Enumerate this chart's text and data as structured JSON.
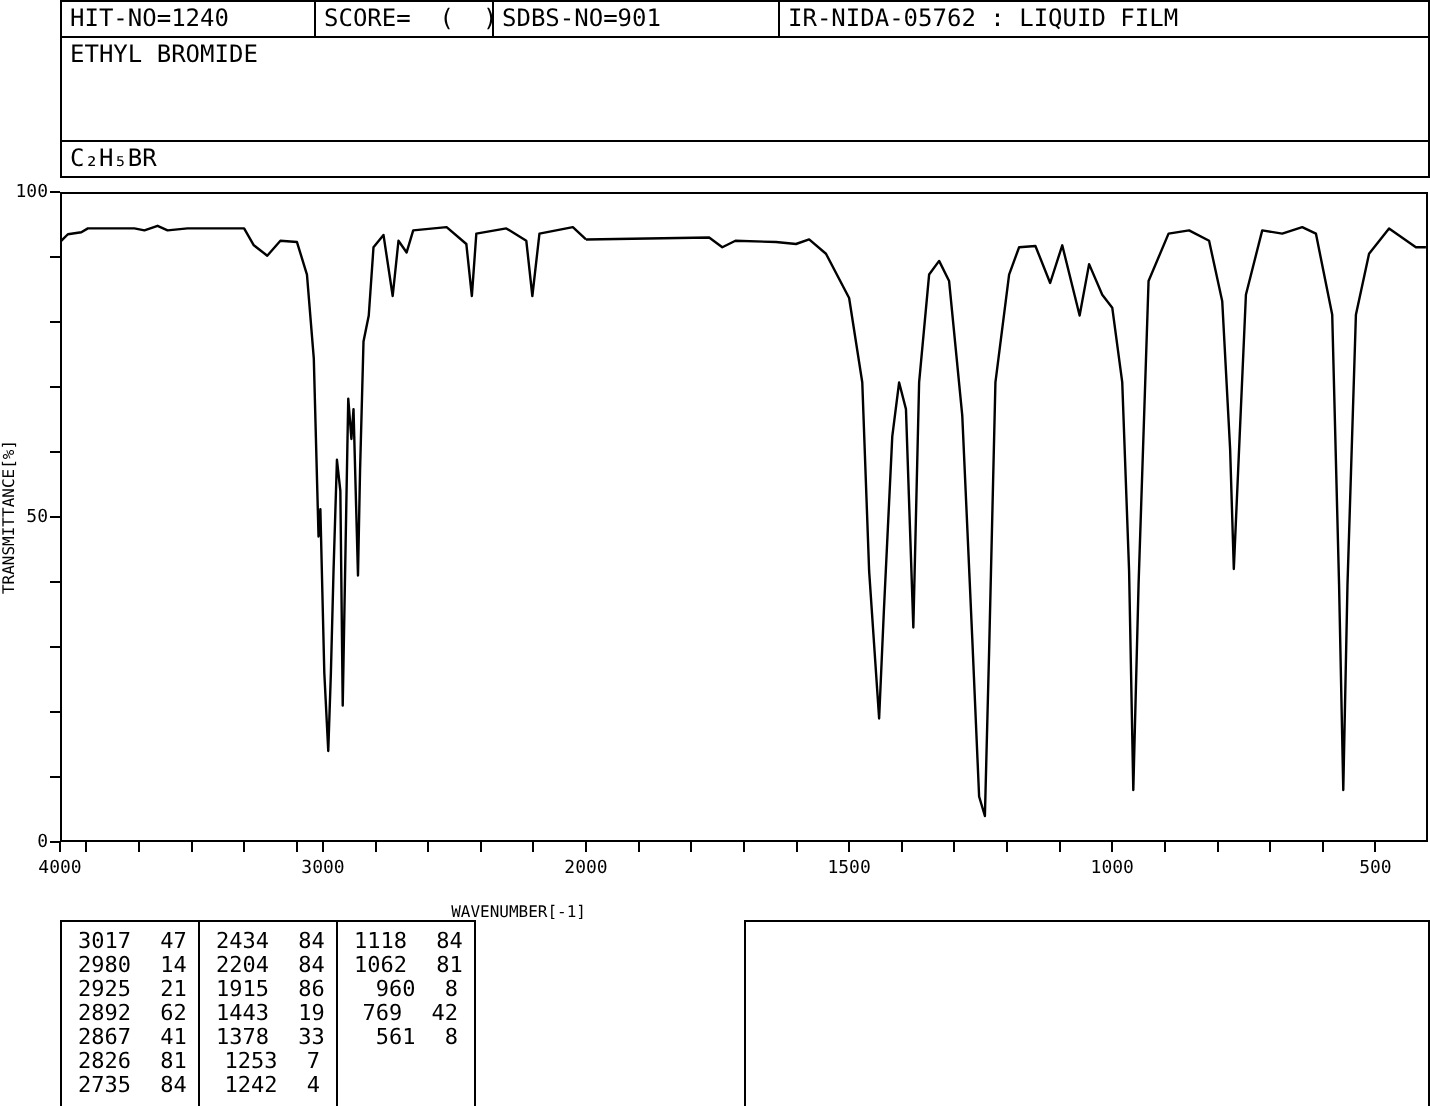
{
  "chart_data": [
    {
      "type": "line",
      "title": "ETHYL BROMIDE",
      "subtitle": "C₂H₅BR",
      "ylabel": "TRANSMITTANCE[%]",
      "x": [
        4000,
        3970,
        3919,
        3894,
        3717,
        3679,
        3629,
        3591,
        3515,
        3300,
        3263,
        3212,
        3162,
        3099,
        3061,
        3035,
        3017,
        3010,
        2995,
        2980,
        2970,
        2960,
        2947,
        2934,
        2925,
        2914,
        2904,
        2892,
        2884,
        2867,
        2859,
        2846,
        2826,
        2808,
        2770,
        2735,
        2713,
        2682,
        2657,
        2530,
        2455,
        2434,
        2417,
        2303,
        2227,
        2204,
        2177,
        2050,
        2000
      ],
      "values": [
        92.3,
        93.5,
        93.8,
        94.4,
        94.4,
        94.1,
        94.8,
        94.1,
        94.4,
        94.4,
        91.8,
        90.2,
        92.5,
        92.3,
        87.3,
        74.4,
        47,
        51.2,
        26,
        14,
        26,
        41.7,
        58.8,
        54,
        21,
        45.9,
        68.2,
        62,
        66.6,
        41,
        57.3,
        77,
        81,
        91.5,
        93.4,
        84,
        92.5,
        90.7,
        94.1,
        94.6,
        92,
        84,
        93.6,
        94.4,
        92.5,
        84,
        93.6,
        94.6,
        92.7
      ],
      "color": "#000000",
      "marker": "none",
      "line_style": "solid",
      "grid": false,
      "legend": false,
      "xlim": [
        4000,
        2000
      ],
      "xticks": [
        4000,
        {
          "value": 3900,
          "label": null
        },
        {
          "value": 3700,
          "label": null
        },
        {
          "value": 3500,
          "label": null
        },
        {
          "value": 3300,
          "label": null
        },
        {
          "value": 3100,
          "label": null
        },
        3000,
        {
          "value": 2800,
          "label": null
        },
        {
          "value": 2600,
          "label": null
        },
        {
          "value": 2400,
          "label": null
        },
        {
          "value": 2200,
          "label": null
        },
        2000
      ],
      "ylim": [
        0,
        100
      ],
      "yticks": [
        0,
        {
          "value": 10,
          "label": null
        },
        {
          "value": 20,
          "label": null
        },
        {
          "value": 30,
          "label": null
        },
        {
          "value": 40,
          "label": null
        },
        50,
        {
          "value": 60,
          "label": null
        },
        {
          "value": 70,
          "label": null
        },
        {
          "value": 80,
          "label": null
        },
        {
          "value": 90,
          "label": null
        },
        100
      ],
      "annotations": [
        "HIT-NO=1240",
        "SCORE=  (  )",
        "SDBS-NO=901",
        "IR-NIDA-05762 : LIQUID FILM",
        "3017 47",
        "2980 14",
        "2925 21",
        "2892 62",
        "2867 41",
        "2826 81",
        "2735 84",
        "2434 84",
        "2204 84",
        "1915 86",
        "1443 19",
        "1378 33",
        "1253 7",
        "1242 4",
        "1118 84",
        "1062 81",
        "960 8",
        "769 42",
        "561 8"
      ]
    },
    {
      "type": "line",
      "xlabel": "WAVENUMBER[-1]",
      "tick_labels": "x",
      "x": [
        2000,
        1766,
        1741,
        1716,
        1639,
        1601,
        1576,
        1544,
        1500,
        1475,
        1462,
        1443,
        1434,
        1418,
        1405,
        1392,
        1378,
        1367,
        1348,
        1329,
        1310,
        1285,
        1266,
        1253,
        1242,
        1234,
        1222,
        1196,
        1177,
        1146,
        1118,
        1095,
        1062,
        1044,
        1019,
        1000,
        981,
        968,
        960,
        950,
        931,
        893,
        854,
        816,
        791,
        776,
        769,
        759,
        746,
        715,
        677,
        639,
        613,
        582,
        569,
        561,
        553,
        537,
        512,
        474,
        423,
        404
      ],
      "values": [
        92.7,
        93,
        91.5,
        92.5,
        92.3,
        92,
        92.7,
        90.5,
        83.7,
        70.7,
        41.7,
        19,
        35.5,
        62.4,
        70.7,
        66.6,
        33,
        70.7,
        87.3,
        89.4,
        86.3,
        65.6,
        31.3,
        7,
        4,
        29.3,
        70.7,
        87.3,
        91.5,
        91.7,
        86,
        91.8,
        81,
        88.9,
        84.2,
        82.2,
        70.7,
        41.7,
        8,
        39.6,
        86.3,
        93.6,
        94.1,
        92.5,
        83.2,
        60.4,
        42,
        60.4,
        84.2,
        94.1,
        93.6,
        94.6,
        93.6,
        81.1,
        39.6,
        8,
        39.6,
        81.1,
        90.5,
        94.4,
        91.5,
        91.5
      ],
      "color": "#000000",
      "marker": "none",
      "line_style": "solid",
      "grid": false,
      "legend": false,
      "xlim": [
        2000,
        400
      ],
      "xticks": [
        {
          "value": 1900,
          "label": null
        },
        {
          "value": 1800,
          "label": null
        },
        {
          "value": 1700,
          "label": null
        },
        {
          "value": 1600,
          "label": null
        },
        1500,
        {
          "value": 1400,
          "label": null
        },
        {
          "value": 1300,
          "label": null
        },
        {
          "value": 1200,
          "label": null
        },
        {
          "value": 1100,
          "label": null
        },
        1000,
        {
          "value": 900,
          "label": null
        },
        {
          "value": 800,
          "label": null
        },
        {
          "value": 700,
          "label": null
        },
        {
          "value": 600,
          "label": null
        },
        500
      ],
      "ylim": [
        0,
        100
      ]
    }
  ]
}
